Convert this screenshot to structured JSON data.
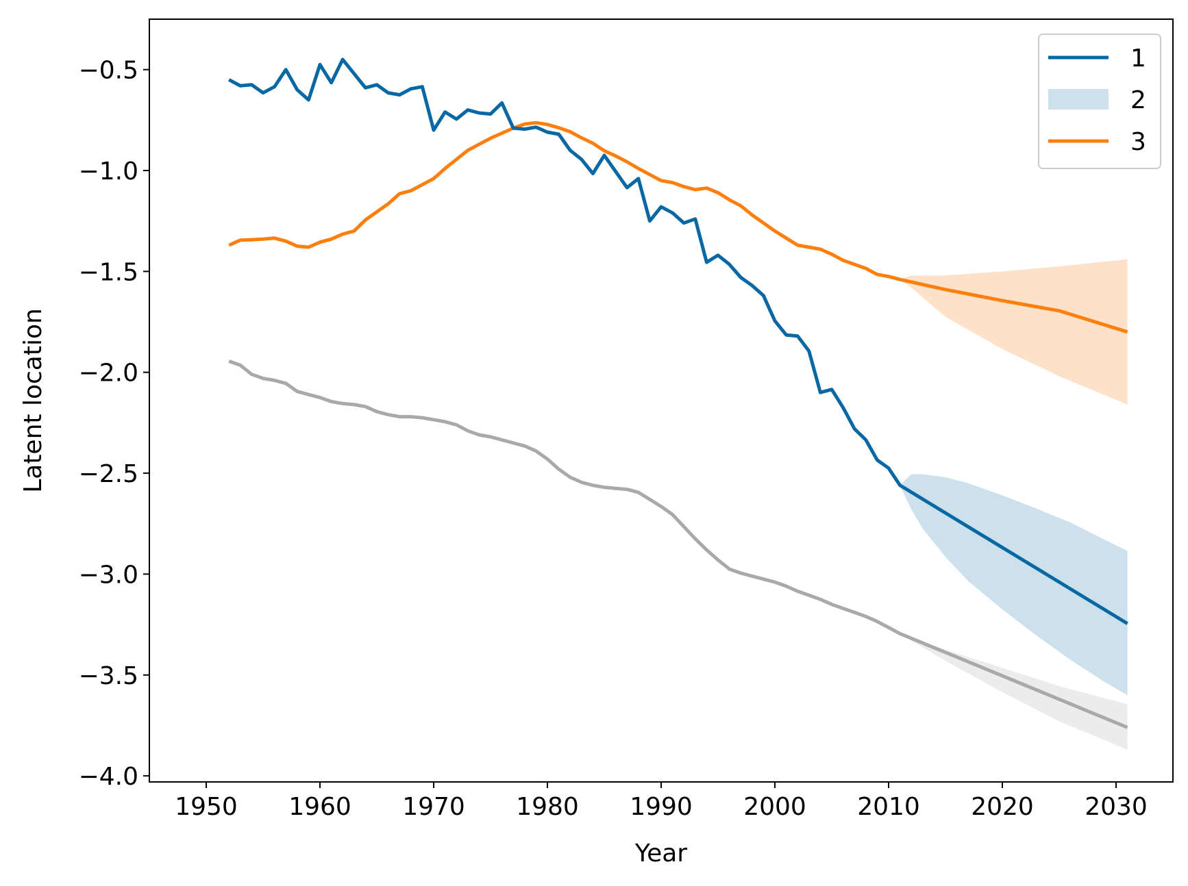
{
  "chart_data": {
    "type": "line",
    "title": "",
    "xlabel": "Year",
    "ylabel": "Latent location",
    "xlim": [
      1945,
      2035
    ],
    "ylim": [
      -4.03,
      -0.25
    ],
    "xticks": [
      1950,
      1960,
      1970,
      1980,
      1990,
      2000,
      2010,
      2020,
      2030
    ],
    "xtick_labels": [
      "1950",
      "1960",
      "1970",
      "1980",
      "1990",
      "2000",
      "2010",
      "2020",
      "2030"
    ],
    "yticks": [
      -0.5,
      -1.0,
      -1.5,
      -2.0,
      -2.5,
      -3.0,
      -3.5,
      -4.0
    ],
    "ytick_labels": [
      "−0.5",
      "−1.0",
      "−1.5",
      "−2.0",
      "−2.5",
      "−3.0",
      "−3.5",
      "−4.0"
    ],
    "grid": false,
    "legend": {
      "placement": "top-right",
      "entries": [
        {
          "label": "1",
          "kind": "line",
          "color": "#0768a4"
        },
        {
          "label": "2",
          "kind": "band",
          "color": "#cde1ed"
        },
        {
          "label": "3",
          "kind": "line",
          "color": "#ff7f0e"
        }
      ]
    },
    "series": [
      {
        "label": "1",
        "color": "#0768a4",
        "x": [
          1952,
          1953,
          1954,
          1955,
          1956,
          1957,
          1958,
          1959,
          1960,
          1961,
          1962,
          1963,
          1964,
          1965,
          1966,
          1967,
          1968,
          1969,
          1970,
          1971,
          1972,
          1973,
          1974,
          1975,
          1976,
          1977,
          1978,
          1979,
          1980,
          1981,
          1982,
          1983,
          1984,
          1985,
          1986,
          1987,
          1988,
          1989,
          1990,
          1991,
          1992,
          1993,
          1994,
          1995,
          1996,
          1997,
          1998,
          1999,
          2000,
          2001,
          2002,
          2003,
          2004,
          2005,
          2006,
          2007,
          2008,
          2009,
          2010,
          2011,
          2031
        ],
        "y": [
          -0.55,
          -0.58,
          -0.575,
          -0.615,
          -0.585,
          -0.5,
          -0.6,
          -0.65,
          -0.475,
          -0.565,
          -0.45,
          -0.52,
          -0.59,
          -0.575,
          -0.615,
          -0.625,
          -0.595,
          -0.585,
          -0.8,
          -0.71,
          -0.745,
          -0.7,
          -0.715,
          -0.72,
          -0.665,
          -0.79,
          -0.795,
          -0.785,
          -0.81,
          -0.82,
          -0.9,
          -0.945,
          -1.015,
          -0.925,
          -1.005,
          -1.085,
          -1.04,
          -1.25,
          -1.18,
          -1.21,
          -1.26,
          -1.24,
          -1.455,
          -1.42,
          -1.465,
          -1.53,
          -1.57,
          -1.62,
          -1.745,
          -1.815,
          -1.82,
          -1.895,
          -2.1,
          -2.085,
          -2.175,
          -2.28,
          -2.335,
          -2.435,
          -2.475,
          -2.56,
          -3.245
        ]
      },
      {
        "label": "3",
        "color": "#ff7f0e",
        "x": [
          1952,
          1953,
          1954,
          1955,
          1956,
          1957,
          1958,
          1959,
          1960,
          1961,
          1962,
          1963,
          1964,
          1965,
          1966,
          1967,
          1968,
          1969,
          1970,
          1971,
          1972,
          1973,
          1974,
          1975,
          1976,
          1977,
          1978,
          1979,
          1980,
          1981,
          1982,
          1983,
          1984,
          1985,
          1986,
          1987,
          1988,
          1989,
          1990,
          1991,
          1992,
          1993,
          1994,
          1995,
          1996,
          1997,
          1998,
          1999,
          2000,
          2001,
          2002,
          2003,
          2004,
          2005,
          2006,
          2007,
          2008,
          2009,
          2010,
          2011,
          2015,
          2020,
          2025,
          2031
        ],
        "y": [
          -1.37,
          -1.345,
          -1.343,
          -1.34,
          -1.335,
          -1.35,
          -1.375,
          -1.38,
          -1.355,
          -1.34,
          -1.315,
          -1.3,
          -1.245,
          -1.205,
          -1.165,
          -1.115,
          -1.1,
          -1.07,
          -1.04,
          -0.99,
          -0.945,
          -0.9,
          -0.87,
          -0.84,
          -0.815,
          -0.79,
          -0.77,
          -0.763,
          -0.772,
          -0.788,
          -0.808,
          -0.838,
          -0.865,
          -0.902,
          -0.928,
          -0.957,
          -0.99,
          -1.02,
          -1.05,
          -1.06,
          -1.08,
          -1.095,
          -1.087,
          -1.11,
          -1.145,
          -1.175,
          -1.22,
          -1.26,
          -1.3,
          -1.335,
          -1.37,
          -1.38,
          -1.39,
          -1.415,
          -1.445,
          -1.465,
          -1.485,
          -1.515,
          -1.525,
          -1.54,
          -1.59,
          -1.645,
          -1.695,
          -1.8
        ]
      },
      {
        "label": "",
        "color": "#a9a9a9",
        "x": [
          1952,
          1953,
          1954,
          1955,
          1956,
          1957,
          1958,
          1959,
          1960,
          1961,
          1962,
          1963,
          1964,
          1965,
          1966,
          1967,
          1968,
          1969,
          1970,
          1971,
          1972,
          1973,
          1974,
          1975,
          1976,
          1977,
          1978,
          1979,
          1980,
          1981,
          1982,
          1983,
          1984,
          1985,
          1986,
          1987,
          1988,
          1989,
          1990,
          1991,
          1992,
          1993,
          1994,
          1995,
          1996,
          1997,
          1998,
          1999,
          2000,
          2001,
          2002,
          2003,
          2004,
          2005,
          2006,
          2007,
          2008,
          2009,
          2010,
          2011,
          2031
        ],
        "y": [
          -1.945,
          -1.965,
          -2.01,
          -2.03,
          -2.04,
          -2.055,
          -2.095,
          -2.11,
          -2.125,
          -2.145,
          -2.155,
          -2.16,
          -2.17,
          -2.195,
          -2.21,
          -2.22,
          -2.22,
          -2.225,
          -2.235,
          -2.245,
          -2.26,
          -2.29,
          -2.31,
          -2.32,
          -2.335,
          -2.35,
          -2.365,
          -2.39,
          -2.43,
          -2.48,
          -2.52,
          -2.545,
          -2.56,
          -2.57,
          -2.575,
          -2.58,
          -2.595,
          -2.63,
          -2.665,
          -2.705,
          -2.765,
          -2.825,
          -2.88,
          -2.93,
          -2.975,
          -2.995,
          -3.01,
          -3.025,
          -3.04,
          -3.06,
          -3.085,
          -3.105,
          -3.125,
          -3.15,
          -3.17,
          -3.19,
          -3.21,
          -3.235,
          -3.265,
          -3.295,
          -3.76
        ]
      }
    ],
    "bands": [
      {
        "label": "2",
        "color": "#cde1ed",
        "x": [
          2011,
          2012,
          2013,
          2015,
          2017,
          2020,
          2023,
          2026,
          2029,
          2031
        ],
        "upper": [
          -2.56,
          -2.505,
          -2.505,
          -2.52,
          -2.55,
          -2.61,
          -2.675,
          -2.745,
          -2.83,
          -2.885
        ],
        "lower": [
          -2.56,
          -2.68,
          -2.775,
          -2.915,
          -3.035,
          -3.175,
          -3.305,
          -3.425,
          -3.535,
          -3.6
        ]
      },
      {
        "label": "",
        "color": "#fde1c8",
        "x": [
          2011,
          2012,
          2015,
          2020,
          2025,
          2031
        ],
        "upper": [
          -1.54,
          -1.52,
          -1.52,
          -1.5,
          -1.475,
          -1.44
        ],
        "lower": [
          -1.54,
          -1.58,
          -1.725,
          -1.885,
          -2.02,
          -2.16
        ]
      },
      {
        "label": "",
        "color": "#ececec",
        "x": [
          2011,
          2015,
          2020,
          2025,
          2031
        ],
        "upper": [
          -3.295,
          -3.375,
          -3.465,
          -3.555,
          -3.645
        ],
        "lower": [
          -3.295,
          -3.43,
          -3.585,
          -3.73,
          -3.87
        ]
      }
    ]
  }
}
